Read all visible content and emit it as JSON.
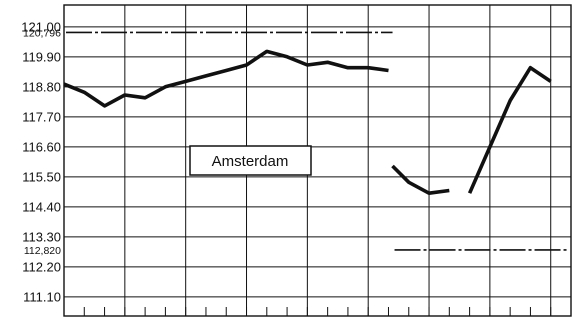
{
  "chart_data": {
    "type": "line",
    "title": "",
    "xlabel": "",
    "ylabel": "",
    "legend": [
      "Amsterdam"
    ],
    "ylim": [
      110.4,
      121.8
    ],
    "x_count": 26,
    "ytick_labels": [
      "121.00",
      "119.90",
      "118.80",
      "117.70",
      "116.60",
      "115.50",
      "114.40",
      "113.30",
      "112.20",
      "111.10"
    ],
    "ytick_values": [
      121.0,
      119.9,
      118.8,
      117.7,
      116.6,
      115.5,
      114.4,
      113.3,
      112.2,
      111.1
    ],
    "special_labels": [
      {
        "label": "120,796",
        "value": 120.796
      },
      {
        "label": "112,820",
        "value": 112.82
      }
    ],
    "reference_lines": [
      {
        "value": 120.796,
        "x_from": 0,
        "x_to": 16.2
      },
      {
        "value": 112.82,
        "x_from": 16.2,
        "x_to": 24.8
      }
    ],
    "series": [
      {
        "segments": [
          [
            [
              0,
              118.9
            ],
            [
              1,
              118.6
            ],
            [
              2,
              118.1
            ],
            [
              3,
              118.5
            ],
            [
              4,
              118.4
            ],
            [
              5,
              118.8
            ],
            [
              6,
              119.0
            ],
            [
              7,
              119.2
            ],
            [
              8,
              119.4
            ],
            [
              9,
              119.6
            ],
            [
              10,
              120.1
            ],
            [
              11,
              119.9
            ],
            [
              12,
              119.6
            ],
            [
              13,
              119.7
            ],
            [
              14,
              119.5
            ],
            [
              15,
              119.5
            ],
            [
              16,
              119.4
            ]
          ],
          [
            [
              16.2,
              115.9
            ],
            [
              17,
              115.3
            ],
            [
              18,
              114.9
            ],
            [
              19,
              115.0
            ]
          ],
          [
            [
              20,
              114.9
            ],
            [
              21,
              116.6
            ],
            [
              22,
              118.3
            ],
            [
              23,
              119.5
            ],
            [
              24,
              119.0
            ]
          ]
        ]
      }
    ]
  }
}
